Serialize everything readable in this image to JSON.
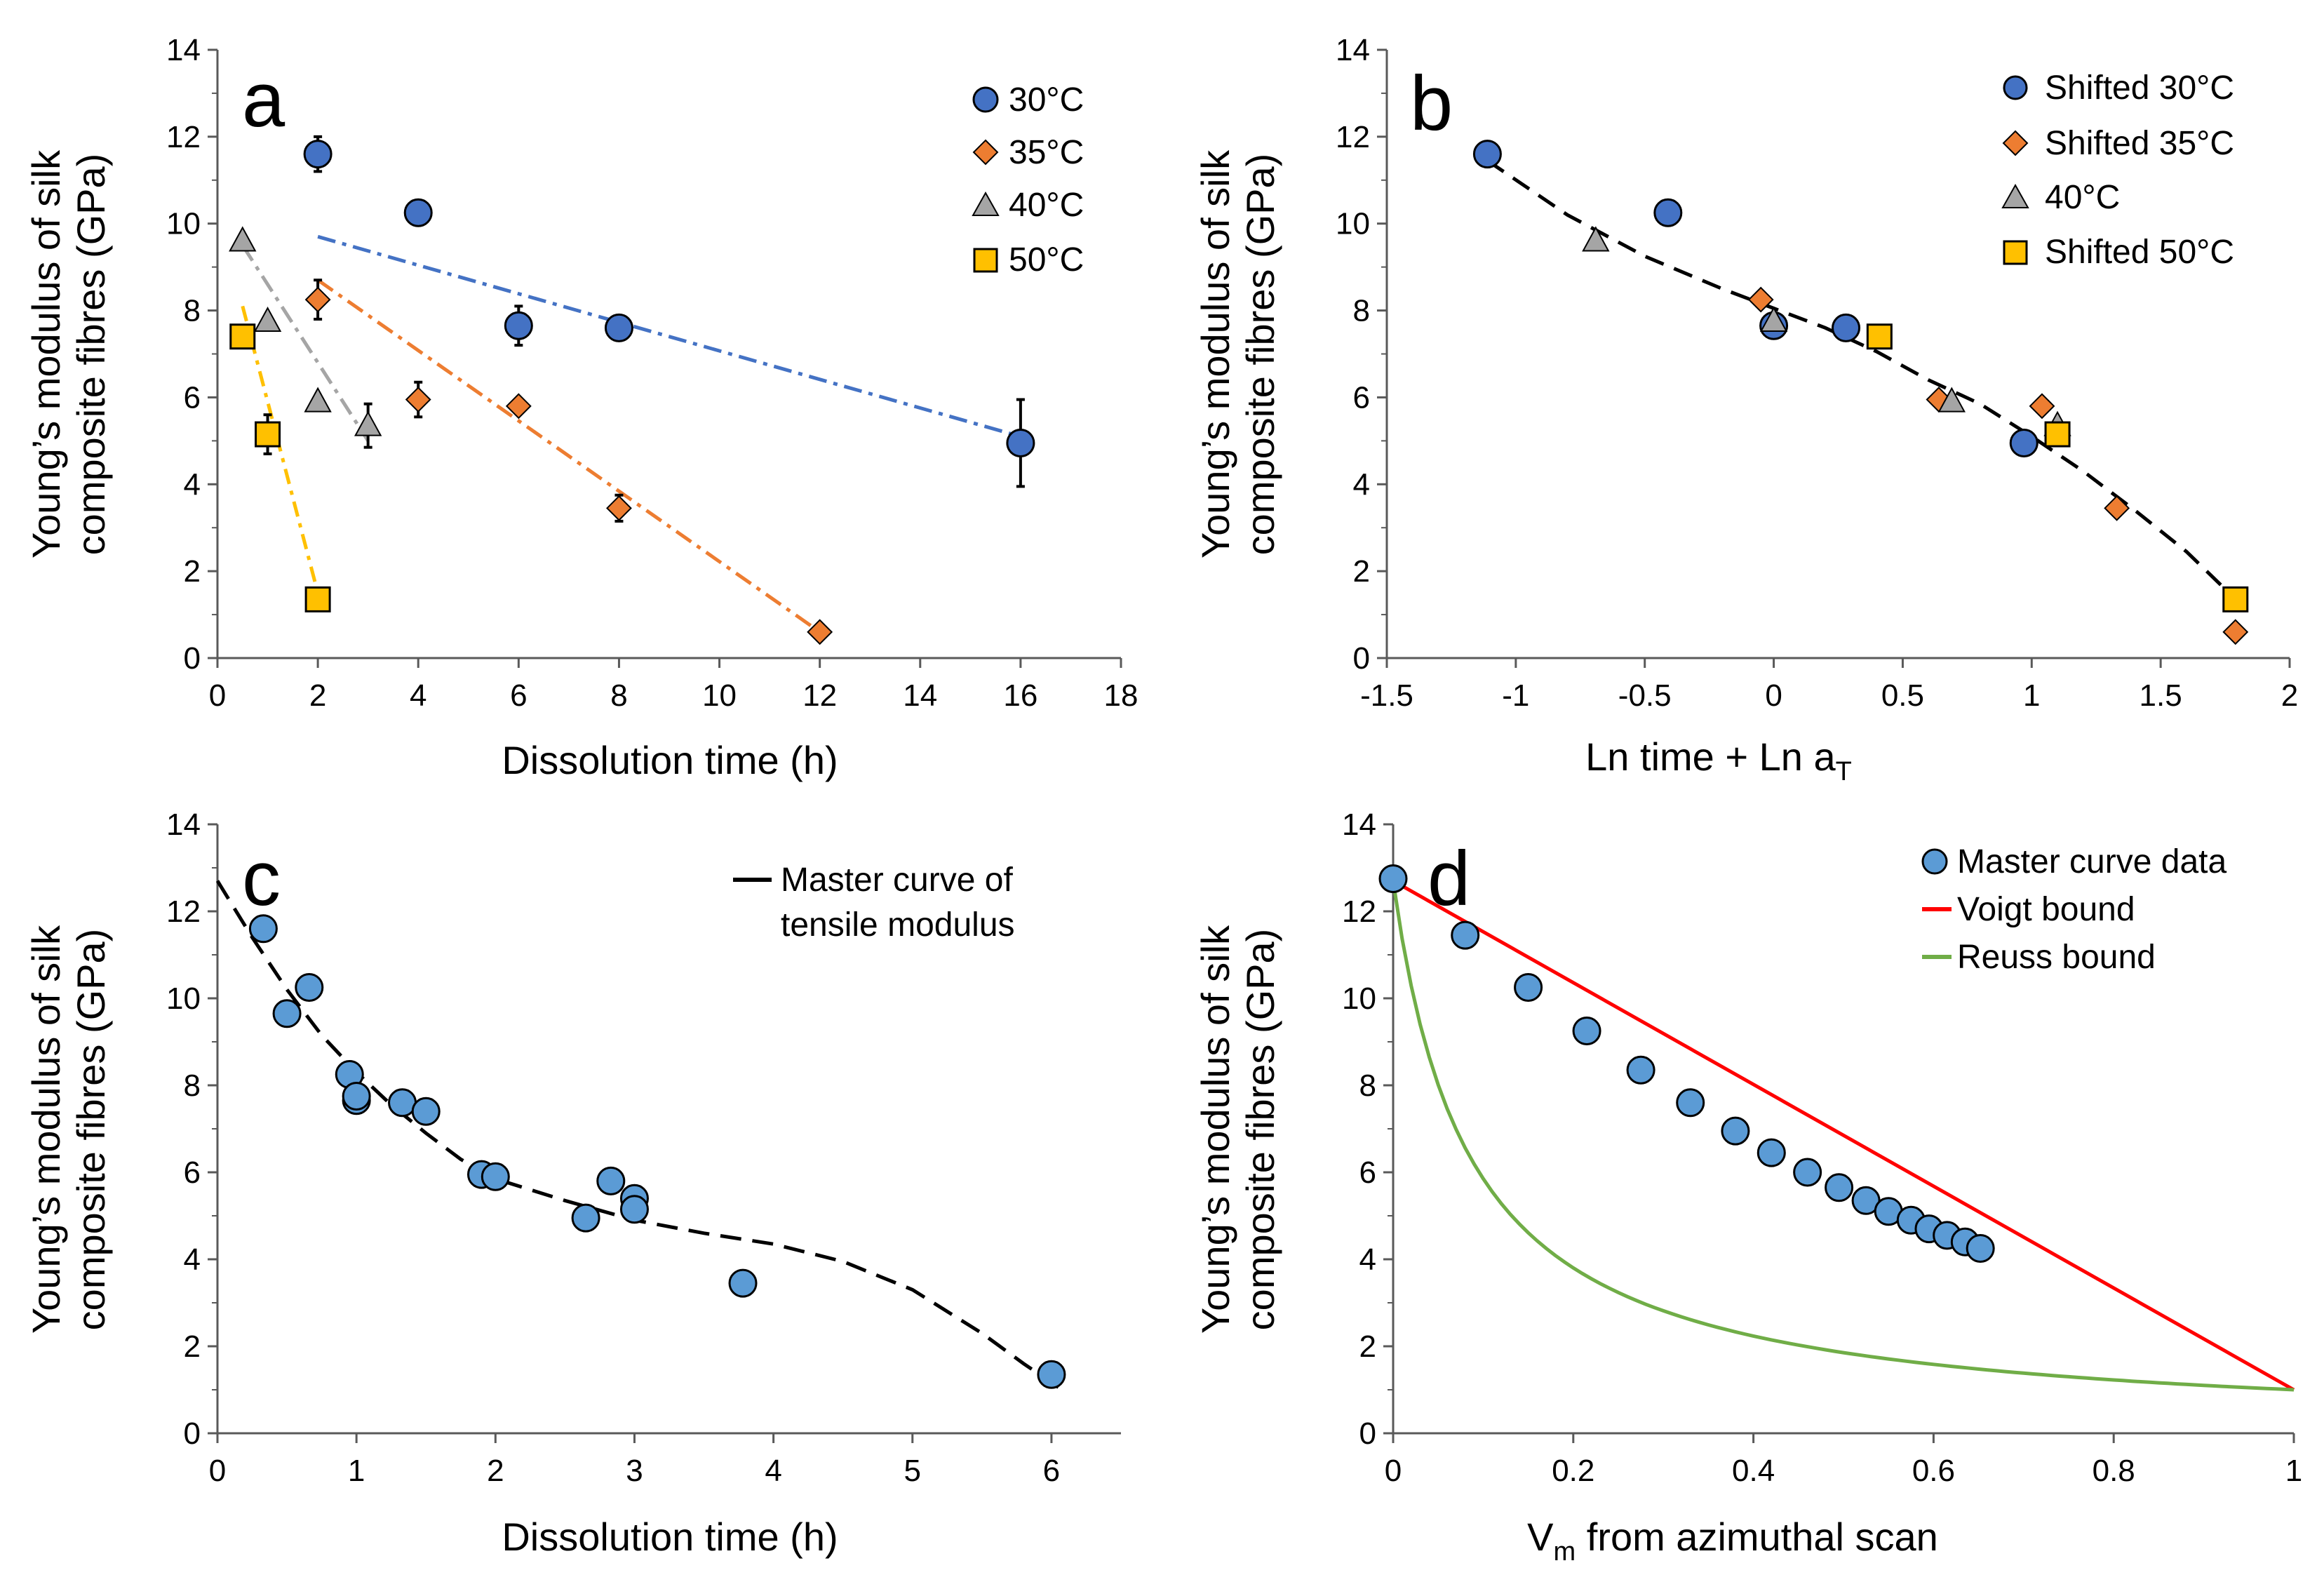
{
  "figure": {
    "y_label_line1": "Young’s modulus of silk",
    "y_label_line2": "composite fibres (GPa)"
  },
  "panels": [
    {
      "id": "a",
      "letter": "a",
      "xlabel": "Dissolution time (h)",
      "xlim": [
        0,
        18
      ],
      "ylim": [
        0,
        14
      ],
      "xticks": [
        0,
        2,
        4,
        6,
        8,
        10,
        12,
        14,
        16,
        18
      ],
      "yticks": [
        0,
        2,
        4,
        6,
        8,
        10,
        12,
        14
      ],
      "legend": [
        "30°C",
        "35°C",
        "40°C",
        "50°C"
      ]
    },
    {
      "id": "b",
      "letter": "b",
      "xlabel": "Ln time + Ln a",
      "xlabel_sub": "T",
      "xlim": [
        -1.5,
        2
      ],
      "ylim": [
        0,
        14
      ],
      "xticks": [
        -1.5,
        -1,
        -0.5,
        0,
        0.5,
        1,
        1.5,
        2
      ],
      "xtick_labels": [
        "-1.5",
        "-1",
        "-0.5",
        "0",
        "0.5",
        "1",
        "1.5",
        "2"
      ],
      "yticks": [
        0,
        2,
        4,
        6,
        8,
        10,
        12,
        14
      ],
      "legend": [
        "Shifted 30°C",
        "Shifted 35°C",
        "40°C",
        "Shifted 50°C"
      ]
    },
    {
      "id": "c",
      "letter": "c",
      "xlabel": "Dissolution time (h)",
      "xlim": [
        0,
        6.5
      ],
      "ylim": [
        0,
        14
      ],
      "xticks": [
        0,
        1,
        2,
        3,
        4,
        5,
        6
      ],
      "yticks": [
        0,
        2,
        4,
        6,
        8,
        10,
        12,
        14
      ],
      "legend_line1": "Master curve of",
      "legend_line2": "tensile modulus"
    },
    {
      "id": "d",
      "letter": "d",
      "xlabel": "V",
      "xlabel_sub": "m",
      "xlabel_rest": " from azimuthal scan",
      "xlim": [
        0,
        1
      ],
      "ylim": [
        0,
        14
      ],
      "xticks": [
        0,
        0.2,
        0.4,
        0.6,
        0.8,
        1
      ],
      "xtick_labels": [
        "0",
        "0.2",
        "0.4",
        "0.6",
        "0.8",
        "1"
      ],
      "yticks": [
        0,
        2,
        4,
        6,
        8,
        10,
        12,
        14
      ],
      "legend": [
        "Master curve data",
        "Voigt bound",
        "Reuss bound"
      ]
    }
  ],
  "colors": {
    "blue_dark": "#4472C4",
    "blue_light": "#5B9BD5",
    "orange": "#ED7D31",
    "gray": "#A5A5A5",
    "yellow": "#FFC000",
    "red": "#FF0000",
    "green": "#70AD47",
    "axis": "#595959"
  },
  "chart_data": [
    {
      "type": "scatter",
      "panel": "a",
      "title": "",
      "xlabel": "Dissolution time (h)",
      "ylabel": "Young’s modulus of silk composite fibres (GPa)",
      "xlim": [
        0,
        18
      ],
      "ylim": [
        0,
        14
      ],
      "series": [
        {
          "name": "30°C",
          "marker": "circle",
          "color": "#4472C4",
          "x": [
            2,
            4,
            6,
            8,
            16
          ],
          "y": [
            11.6,
            10.25,
            7.65,
            7.6,
            4.95
          ],
          "err": [
            0.4,
            0,
            0.45,
            0,
            1.0
          ],
          "trend": {
            "x": [
              2,
              16
            ],
            "y": [
              9.7,
              5.1
            ]
          }
        },
        {
          "name": "35°C",
          "marker": "diamond",
          "color": "#ED7D31",
          "x": [
            2,
            4,
            6,
            8,
            12
          ],
          "y": [
            8.25,
            5.95,
            5.8,
            3.45,
            0.6
          ],
          "err": [
            0.45,
            0.4,
            0,
            0.3,
            0
          ],
          "trend": {
            "x": [
              2,
              12
            ],
            "y": [
              8.7,
              0.6
            ]
          }
        },
        {
          "name": "40°C",
          "marker": "triangle",
          "color": "#A5A5A5",
          "x": [
            0.5,
            1,
            2,
            3
          ],
          "y": [
            9.6,
            7.75,
            5.9,
            5.35
          ],
          "err": [
            0,
            0,
            0,
            0.5
          ],
          "trend": {
            "x": [
              0.5,
              3
            ],
            "y": [
              9.5,
              5.0
            ]
          }
        },
        {
          "name": "50°C",
          "marker": "square",
          "color": "#FFC000",
          "x": [
            0.5,
            1,
            2
          ],
          "y": [
            7.4,
            5.15,
            1.35
          ],
          "err": [
            0,
            0.45,
            0
          ],
          "trend": {
            "x": [
              0.5,
              2
            ],
            "y": [
              8.1,
              1.5
            ]
          }
        }
      ]
    },
    {
      "type": "scatter",
      "panel": "b",
      "title": "",
      "xlabel": "Ln time + Ln aT",
      "ylabel": "Young’s modulus of silk composite fibres (GPa)",
      "xlim": [
        -1.5,
        2
      ],
      "ylim": [
        0,
        14
      ],
      "series": [
        {
          "name": "Shifted 30°C",
          "marker": "circle",
          "color": "#4472C4",
          "x": [
            -1.11,
            -0.41,
            0,
            0.28,
            0.97
          ],
          "y": [
            11.6,
            10.25,
            7.65,
            7.6,
            4.95
          ]
        },
        {
          "name": "Shifted 35°C",
          "marker": "diamond",
          "color": "#ED7D31",
          "x": [
            -0.05,
            0.64,
            1.04,
            1.33,
            1.79
          ],
          "y": [
            8.25,
            5.95,
            5.8,
            3.45,
            0.6
          ]
        },
        {
          "name": "40°C",
          "marker": "triangle",
          "color": "#A5A5A5",
          "x": [
            -0.69,
            0,
            0.69,
            1.1
          ],
          "y": [
            9.6,
            7.75,
            5.9,
            5.35
          ]
        },
        {
          "name": "Shifted 50°C",
          "marker": "square",
          "color": "#FFC000",
          "x": [
            0.41,
            1.1,
            1.79
          ],
          "y": [
            7.4,
            5.15,
            1.35
          ]
        }
      ],
      "fit": {
        "style": "dashed",
        "color": "#000000",
        "x": [
          -1.11,
          -0.8,
          -0.5,
          -0.2,
          0,
          0.2,
          0.4,
          0.6,
          0.8,
          1.0,
          1.2,
          1.4,
          1.6,
          1.8
        ],
        "y": [
          11.45,
          10.2,
          9.25,
          8.5,
          8.05,
          7.6,
          7.05,
          6.4,
          5.85,
          5.1,
          4.3,
          3.4,
          2.45,
          1.3
        ]
      }
    },
    {
      "type": "scatter",
      "panel": "c",
      "title": "",
      "xlabel": "Dissolution time (h)",
      "ylabel": "Young’s modulus of silk composite fibres (GPa)",
      "xlim": [
        0,
        6.5
      ],
      "ylim": [
        0,
        14
      ],
      "series": [
        {
          "name": "Master curve data",
          "marker": "circle",
          "color": "#5B9BD5",
          "x": [
            0.33,
            0.5,
            0.66,
            0.95,
            1,
            1,
            1.33,
            1.5,
            1.9,
            2,
            2.65,
            2.83,
            3,
            3,
            3.78,
            6
          ],
          "y": [
            11.6,
            9.65,
            10.25,
            8.25,
            7.65,
            7.75,
            7.6,
            7.4,
            5.95,
            5.9,
            4.95,
            5.8,
            5.4,
            5.15,
            3.45,
            1.35
          ]
        }
      ],
      "fit": {
        "name": "Master curve of tensile modulus",
        "style": "dashed",
        "color": "#000000",
        "x": [
          0,
          0.25,
          0.5,
          0.75,
          1.0,
          1.25,
          1.5,
          1.75,
          2.0,
          2.5,
          3.0,
          3.5,
          4.0,
          4.5,
          5.0,
          5.5,
          5.8,
          6.1
        ],
        "y": [
          12.7,
          11.4,
          10.2,
          9.15,
          8.3,
          7.55,
          6.9,
          6.3,
          5.85,
          5.35,
          4.9,
          4.6,
          4.35,
          3.95,
          3.3,
          2.3,
          1.6,
          0.95
        ]
      }
    },
    {
      "type": "scatter",
      "panel": "d",
      "title": "",
      "xlabel": "Vm from azimuthal scan",
      "ylabel": "Young’s modulus of silk composite fibres (GPa)",
      "xlim": [
        0,
        1
      ],
      "ylim": [
        0,
        14
      ],
      "series": [
        {
          "name": "Master curve data",
          "marker": "circle",
          "color": "#5B9BD5",
          "x": [
            0,
            0.08,
            0.15,
            0.215,
            0.275,
            0.33,
            0.38,
            0.42,
            0.46,
            0.495,
            0.525,
            0.55,
            0.575,
            0.595,
            0.615,
            0.635,
            0.652
          ],
          "y": [
            12.75,
            11.45,
            10.25,
            9.25,
            8.35,
            7.6,
            6.95,
            6.45,
            6.0,
            5.65,
            5.35,
            5.1,
            4.9,
            4.7,
            4.55,
            4.4,
            4.25
          ]
        }
      ],
      "bounds": {
        "Ef": 12.7,
        "Em": 1.0,
        "voigt": {
          "name": "Voigt bound",
          "color": "#FF0000"
        },
        "reuss": {
          "name": "Reuss bound",
          "color": "#70AD47"
        }
      }
    }
  ]
}
